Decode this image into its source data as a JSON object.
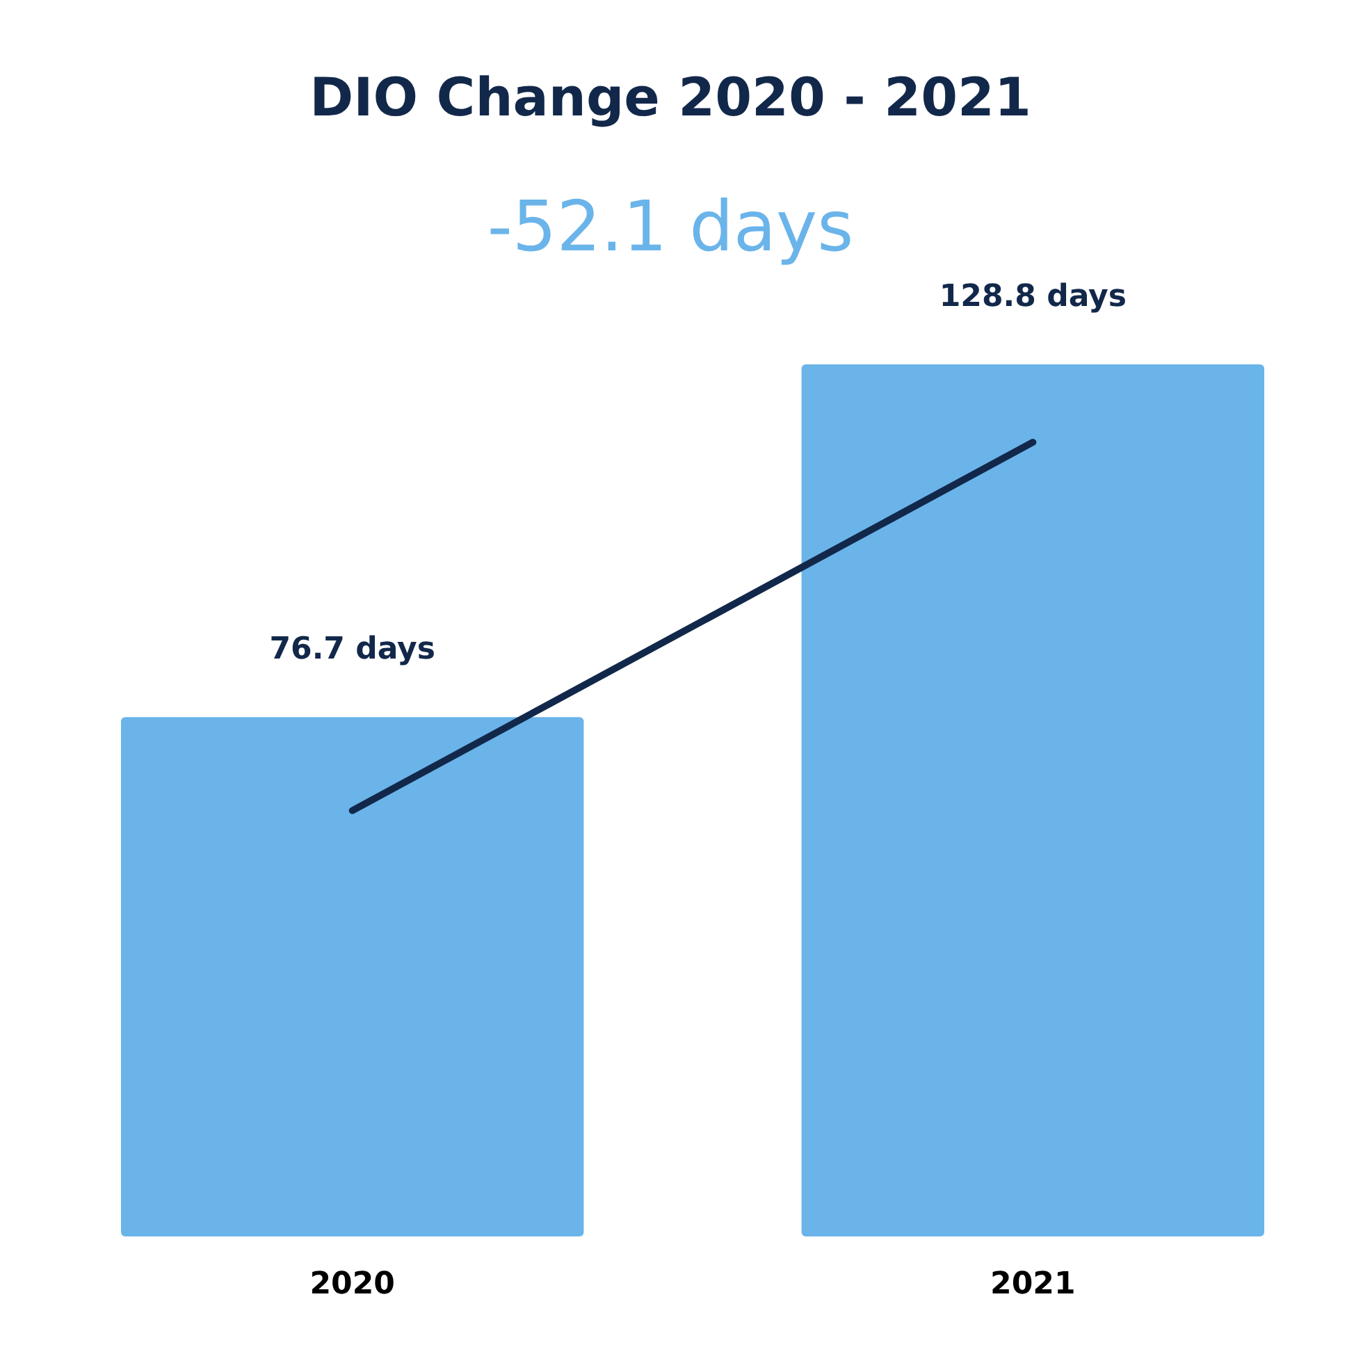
{
  "chart_data": {
    "type": "bar",
    "title": "DIO Change 2020 - 2021",
    "subtitle": "-52.1 days",
    "categories": [
      "2020",
      "2021"
    ],
    "series": [
      {
        "color": "#6ab4ea",
        "values": [
          76.7,
          128.8
        ],
        "value_labels": [
          "76.7 days",
          "128.8 days"
        ]
      },
      {
        "type": "line",
        "color": "#12284a",
        "values": [
          62.9,
          117.3
        ]
      }
    ]
  }
}
